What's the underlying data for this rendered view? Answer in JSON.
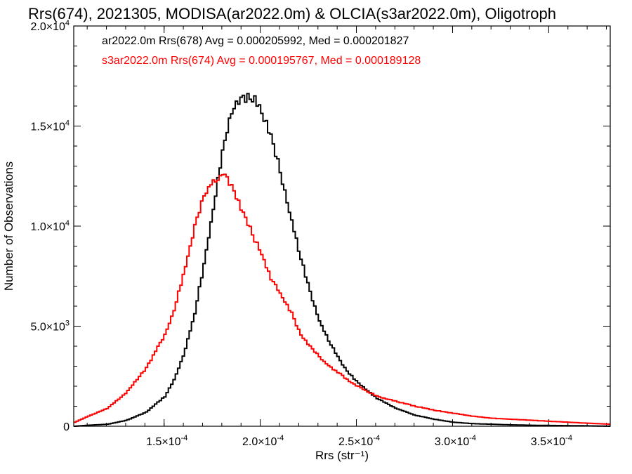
{
  "chart_data": {
    "type": "line",
    "title": "Rrs(674), 2021305, MODISA(ar2022.0m) & OLCIA(s3ar2022.0m), Oligotroph",
    "xlabel": "Rrs (str⁻¹)",
    "ylabel": "Number of Observations",
    "xlim": [
      0.000103,
      0.000382
    ],
    "ylim": [
      0,
      20000
    ],
    "x_ticks": [
      {
        "value": 0.00015,
        "mantissa": "1.5",
        "exponent": "-4"
      },
      {
        "value": 0.0002,
        "mantissa": "2.0",
        "exponent": "-4"
      },
      {
        "value": 0.00025,
        "mantissa": "2.5",
        "exponent": "-4"
      },
      {
        "value": 0.0003,
        "mantissa": "3.0",
        "exponent": "-4"
      },
      {
        "value": 0.00035,
        "mantissa": "3.5",
        "exponent": "-4"
      }
    ],
    "y_ticks": [
      {
        "value": 0,
        "mantissa": "0",
        "exponent": ""
      },
      {
        "value": 5000,
        "mantissa": "5.0",
        "exponent": "3"
      },
      {
        "value": 10000,
        "mantissa": "1.0",
        "exponent": "4"
      },
      {
        "value": 15000,
        "mantissa": "1.5",
        "exponent": "4"
      },
      {
        "value": 20000,
        "mantissa": "2.0",
        "exponent": "4"
      }
    ],
    "legend_position": "top-left",
    "series": [
      {
        "name": "ar2022.0m Rrs(678) Avg = 0.000205992, Med = 0.000201827",
        "color": "#000000",
        "x": [
          0.000103,
          0.00011,
          0.00012,
          0.00013,
          0.00014,
          0.00015,
          0.000155,
          0.00016,
          0.000165,
          0.00017,
          0.000175,
          0.00018,
          0.000185,
          0.00019,
          0.000195,
          0.0002,
          0.000205,
          0.00021,
          0.000215,
          0.00022,
          0.000225,
          0.00023,
          0.000235,
          0.00024,
          0.000245,
          0.00025,
          0.000255,
          0.00026,
          0.00027,
          0.00028,
          0.00029,
          0.0003,
          0.00031,
          0.00032,
          0.00033,
          0.00034,
          0.00035,
          0.00036,
          0.00037,
          0.000382
        ],
        "y": [
          0,
          50,
          100,
          300,
          700,
          1500,
          2400,
          3700,
          5500,
          8000,
          10900,
          13800,
          15900,
          16400,
          16500,
          15800,
          14400,
          12700,
          10500,
          8600,
          6800,
          5300,
          4300,
          3400,
          2700,
          2200,
          1800,
          1400,
          900,
          550,
          350,
          200,
          130,
          100,
          70,
          50,
          40,
          30,
          20,
          0
        ]
      },
      {
        "name": "s3ar2022.0m Rrs(674) Avg = 0.000195767, Med = 0.000189128",
        "color": "#ff0000",
        "x": [
          0.000103,
          0.00011,
          0.00012,
          0.00013,
          0.00014,
          0.00015,
          0.000155,
          0.00016,
          0.000165,
          0.00017,
          0.000175,
          0.00018,
          0.000185,
          0.00019,
          0.000195,
          0.0002,
          0.000205,
          0.00021,
          0.000215,
          0.00022,
          0.000225,
          0.00023,
          0.000235,
          0.00024,
          0.000245,
          0.00025,
          0.000255,
          0.00026,
          0.00027,
          0.00028,
          0.00029,
          0.0003,
          0.00031,
          0.00032,
          0.00033,
          0.00034,
          0.00035,
          0.00036,
          0.00037,
          0.000382
        ],
        "y": [
          200,
          500,
          900,
          1700,
          2900,
          4600,
          5900,
          7800,
          9800,
          11500,
          12300,
          12600,
          12000,
          10800,
          9700,
          8600,
          7400,
          6600,
          5800,
          4700,
          4000,
          3500,
          3000,
          2700,
          2300,
          2000,
          1750,
          1500,
          1250,
          1000,
          800,
          650,
          500,
          400,
          350,
          300,
          250,
          200,
          150,
          100
        ]
      }
    ]
  }
}
